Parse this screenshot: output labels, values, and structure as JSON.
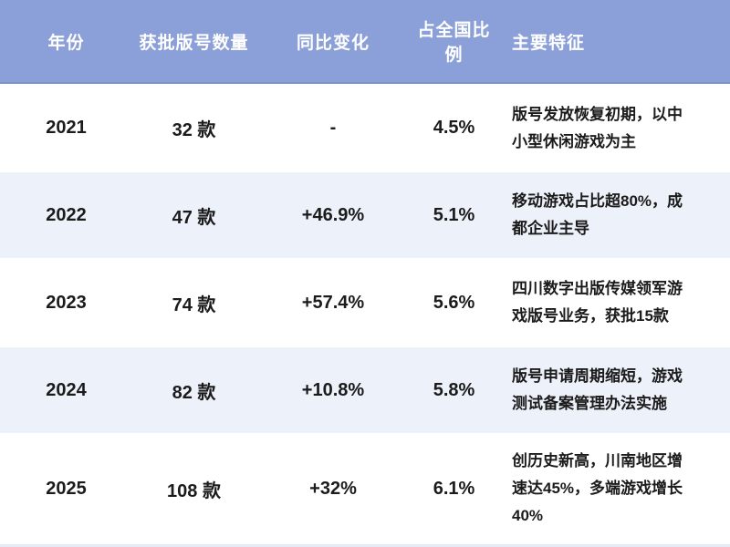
{
  "colors": {
    "header_bg": "#8b9fd8",
    "header_text": "#ffffff",
    "row_bg": "#ffffff",
    "row_alt_bg": "#edf1f9",
    "body_text": "#1b1b1b",
    "bottom_strip": "#e5eaf4"
  },
  "chart_data": {
    "type": "table",
    "columns": [
      {
        "key": "year",
        "label": "年份"
      },
      {
        "key": "count",
        "label": "获批版号数量"
      },
      {
        "key": "yoy",
        "label": "同比变化"
      },
      {
        "key": "share",
        "label": "占全国比例"
      },
      {
        "key": "features",
        "label": "主要特征"
      }
    ],
    "rows": [
      {
        "year": "2021",
        "count": "32 款",
        "yoy": "-",
        "share": "4.5%",
        "features": "版号发放恢复初期，以中小型休闲游戏为主"
      },
      {
        "year": "2022",
        "count": "47 款",
        "yoy": "+46.9%",
        "share": "5.1%",
        "features": "移动游戏占比超80%，成都企业主导"
      },
      {
        "year": "2023",
        "count": "74 款",
        "yoy": "+57.4%",
        "share": "5.6%",
        "features": "四川数字出版传媒领军游戏版号业务，获批15款"
      },
      {
        "year": "2024",
        "count": "82 款",
        "yoy": "+10.8%",
        "share": "5.8%",
        "features": "版号申请周期缩短，游戏测试备案管理办法实施"
      },
      {
        "year": "2025",
        "count": "108 款",
        "yoy": "+32%",
        "share": "6.1%",
        "features": "创历史新高，川南地区增速达45%，多端游戏增长40%"
      }
    ]
  }
}
